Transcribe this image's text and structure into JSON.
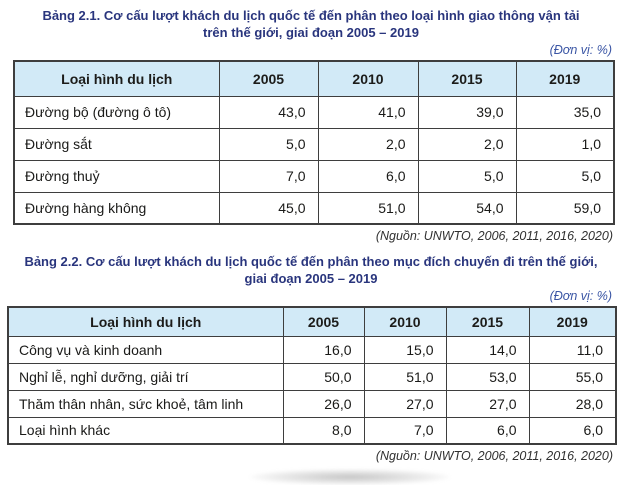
{
  "colors": {
    "title_blue": "#29357d",
    "unit_note_blue": "#3a55a4",
    "table_header_bg": "#d2eaf7",
    "table_border": "#3e3e3e",
    "body_text": "#1a1a18",
    "source_text": "#303030"
  },
  "table1": {
    "title_line1": "Bảng 2.1. Cơ cấu lượt khách du lịch quốc tế đến phân theo loại hình giao thông vận tải",
    "title_line2": "trên thế giới, giai đoạn 2005 – 2019",
    "unit_note": "(Đơn vị: %)",
    "columns": [
      "Loại hình du lịch",
      "2005",
      "2010",
      "2015",
      "2019"
    ],
    "rows": [
      {
        "label": "Đường bộ (đường ô tô)",
        "values": [
          "43,0",
          "41,0",
          "39,0",
          "35,0"
        ]
      },
      {
        "label": "Đường sắt",
        "values": [
          "5,0",
          "2,0",
          "2,0",
          "1,0"
        ]
      },
      {
        "label": "Đường thuỷ",
        "values": [
          "7,0",
          "6,0",
          "5,0",
          "5,0"
        ]
      },
      {
        "label": "Đường hàng không",
        "values": [
          "45,0",
          "51,0",
          "54,0",
          "59,0"
        ]
      }
    ],
    "source": "(Nguồn: UNWTO, 2006, 2011, 2016, 2020)"
  },
  "table2": {
    "title_line1": "Bảng 2.2. Cơ cấu lượt khách du lịch quốc tế đến phân theo mục đích chuyến đi trên thế giới,",
    "title_line2": "giai đoạn 2005 – 2019",
    "unit_note": "(Đơn vị: %)",
    "columns": [
      "Loại hình du lịch",
      "2005",
      "2010",
      "2015",
      "2019"
    ],
    "rows": [
      {
        "label": "Công vụ và kinh doanh",
        "values": [
          "16,0",
          "15,0",
          "14,0",
          "11,0"
        ]
      },
      {
        "label": "Nghỉ lễ, nghỉ dưỡng, giải trí",
        "values": [
          "50,0",
          "51,0",
          "53,0",
          "55,0"
        ]
      },
      {
        "label": "Thăm thân nhân, sức khoẻ, tâm linh",
        "values": [
          "26,0",
          "27,0",
          "27,0",
          "28,0"
        ]
      },
      {
        "label": "Loại hình khác",
        "values": [
          "8,0",
          "7,0",
          "6,0",
          "6,0"
        ]
      }
    ],
    "source": "(Nguồn: UNWTO, 2006, 2011, 2016, 2020)"
  }
}
